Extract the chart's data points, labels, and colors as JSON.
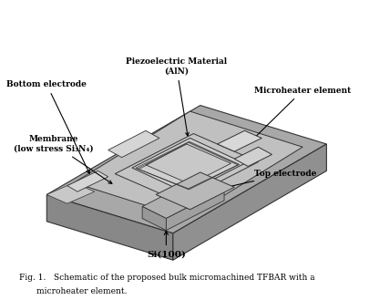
{
  "fig_caption_line1": "Fig. 1.   Schematic of the proposed bulk micromachined TFBAR with a",
  "fig_caption_line2": "microheater element.",
  "label_piezo": "Piezoelectric Material\n(AlN)",
  "label_bottom": "Bottom electrode",
  "label_microheater": "Microheater element",
  "label_membrane": "Membrane\n(low stress Si₃N₄)",
  "label_top": "Top electrode",
  "label_si": "Si(100)",
  "bg_color": "#ffffff",
  "label_color": "#000000"
}
